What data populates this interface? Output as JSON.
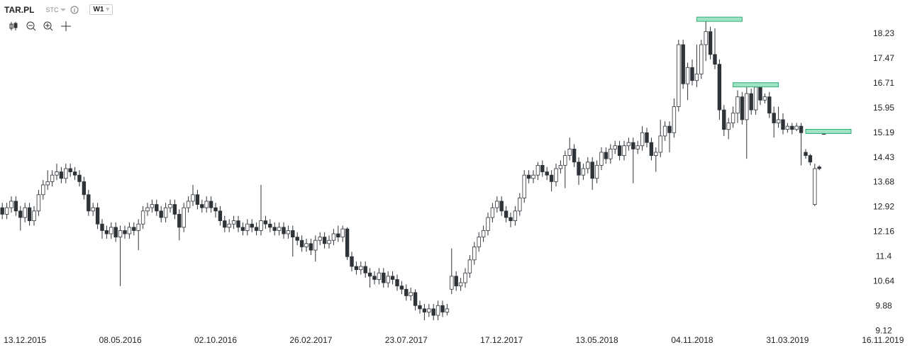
{
  "chart_data": {
    "type": "candlestick",
    "ticker": "TAR.PL",
    "source": "STC",
    "interval": "W1",
    "categories": [
      null,
      null,
      null,
      null,
      null,
      "13.12.2015",
      null,
      null,
      null,
      null,
      null,
      null,
      null,
      null,
      null,
      null,
      null,
      null,
      null,
      null,
      null,
      null,
      null,
      null,
      null,
      null,
      "08.05.2016",
      null,
      null,
      null,
      null,
      null,
      null,
      null,
      null,
      null,
      null,
      null,
      null,
      null,
      null,
      null,
      null,
      null,
      null,
      null,
      null,
      "02.10.2016",
      null,
      null,
      null,
      null,
      null,
      null,
      null,
      null,
      null,
      null,
      null,
      null,
      null,
      null,
      null,
      null,
      null,
      null,
      null,
      null,
      "26.02.2017",
      null,
      null,
      null,
      null,
      null,
      null,
      null,
      null,
      null,
      null,
      null,
      null,
      null,
      null,
      null,
      null,
      null,
      null,
      null,
      null,
      "23.07.2017",
      null,
      null,
      null,
      null,
      null,
      null,
      null,
      null,
      null,
      null,
      null,
      null,
      null,
      null,
      null,
      null,
      null,
      null,
      null,
      null,
      "17.12.2017",
      null,
      null,
      null,
      null,
      null,
      null,
      null,
      null,
      null,
      null,
      null,
      null,
      null,
      null,
      null,
      null,
      null,
      null,
      null,
      null,
      "13.05.2018",
      null,
      null,
      null,
      null,
      null,
      null,
      null,
      null,
      null,
      null,
      null,
      null,
      null,
      null,
      null,
      null,
      null,
      null,
      null,
      null,
      "04.11.2018",
      null,
      null,
      null,
      null,
      null,
      null,
      null,
      null,
      null,
      null,
      null,
      null,
      null,
      null,
      null,
      null,
      null,
      null,
      null,
      null,
      "31.03.2019",
      null,
      null,
      null,
      null,
      null,
      null,
      null,
      null,
      null,
      null,
      null,
      null,
      null,
      null,
      null,
      null,
      null,
      null,
      null,
      null,
      "16.11.2019"
    ],
    "ohlc": [
      [
        12.9,
        13.05,
        12.55,
        12.7
      ],
      [
        12.7,
        13.05,
        12.55,
        12.9
      ],
      [
        12.9,
        13.25,
        12.75,
        13.1
      ],
      [
        13.1,
        13.25,
        12.65,
        12.8
      ],
      [
        12.8,
        12.95,
        12.2,
        12.6
      ],
      [
        12.6,
        13.05,
        12.45,
        12.9
      ],
      [
        12.9,
        13.05,
        12.35,
        12.5
      ],
      [
        12.5,
        12.95,
        12.35,
        12.8
      ],
      [
        12.8,
        13.45,
        12.65,
        13.3
      ],
      [
        13.3,
        13.75,
        13.15,
        13.6
      ],
      [
        13.6,
        14.05,
        13.45,
        13.7
      ],
      [
        13.7,
        14.05,
        13.55,
        13.9
      ],
      [
        13.9,
        14.25,
        13.75,
        14.0
      ],
      [
        14.0,
        14.15,
        13.65,
        13.8
      ],
      [
        13.8,
        14.25,
        13.65,
        14.1
      ],
      [
        14.1,
        14.25,
        13.85,
        14.0
      ],
      [
        14.0,
        14.15,
        13.75,
        13.9
      ],
      [
        13.9,
        14.05,
        13.55,
        13.7
      ],
      [
        13.7,
        13.85,
        13.15,
        13.3
      ],
      [
        13.3,
        13.45,
        12.65,
        12.8
      ],
      [
        12.8,
        13.05,
        12.65,
        12.9
      ],
      [
        12.9,
        13.05,
        12.25,
        12.4
      ],
      [
        12.4,
        12.55,
        11.95,
        12.2
      ],
      [
        12.2,
        12.35,
        11.95,
        12.1
      ],
      [
        12.1,
        12.45,
        11.95,
        12.3
      ],
      [
        12.3,
        12.45,
        11.85,
        12.0
      ],
      [
        12.0,
        12.35,
        10.5,
        12.2
      ],
      [
        12.2,
        12.35,
        11.95,
        12.1
      ],
      [
        12.1,
        12.45,
        11.95,
        12.3
      ],
      [
        12.3,
        12.45,
        12.05,
        12.2
      ],
      [
        12.2,
        12.55,
        11.6,
        12.4
      ],
      [
        12.4,
        12.95,
        12.25,
        12.8
      ],
      [
        12.8,
        13.05,
        12.65,
        12.9
      ],
      [
        12.9,
        13.15,
        12.75,
        13.0
      ],
      [
        13.0,
        13.15,
        12.65,
        12.8
      ],
      [
        12.8,
        12.95,
        12.45,
        12.6
      ],
      [
        12.6,
        13.05,
        12.45,
        12.9
      ],
      [
        12.9,
        13.15,
        12.75,
        13.0
      ],
      [
        13.0,
        13.15,
        12.55,
        12.7
      ],
      [
        12.7,
        12.85,
        11.9,
        12.3
      ],
      [
        12.3,
        13.05,
        12.15,
        12.9
      ],
      [
        12.9,
        13.25,
        12.75,
        13.1
      ],
      [
        13.1,
        13.6,
        12.95,
        13.3
      ],
      [
        13.3,
        13.45,
        12.85,
        13.0
      ],
      [
        13.0,
        13.15,
        12.75,
        12.9
      ],
      [
        12.9,
        13.25,
        12.75,
        13.1
      ],
      [
        13.1,
        13.25,
        12.75,
        12.9
      ],
      [
        12.9,
        13.05,
        12.6,
        12.8
      ],
      [
        12.8,
        12.95,
        12.35,
        12.5
      ],
      [
        12.5,
        12.65,
        12.15,
        12.3
      ],
      [
        12.3,
        12.55,
        12.15,
        12.4
      ],
      [
        12.4,
        12.65,
        12.25,
        12.5
      ],
      [
        12.5,
        12.65,
        12.15,
        12.3
      ],
      [
        12.3,
        12.45,
        12.05,
        12.2
      ],
      [
        12.2,
        12.55,
        12.05,
        12.4
      ],
      [
        12.4,
        12.55,
        12.15,
        12.3
      ],
      [
        12.3,
        12.45,
        12.05,
        12.2
      ],
      [
        12.2,
        13.6,
        12.05,
        12.5
      ],
      [
        12.5,
        12.65,
        12.25,
        12.4
      ],
      [
        12.4,
        12.55,
        12.15,
        12.3
      ],
      [
        12.3,
        12.45,
        12.05,
        12.2
      ],
      [
        12.2,
        12.45,
        12.05,
        12.3
      ],
      [
        12.3,
        12.45,
        11.95,
        12.1
      ],
      [
        12.1,
        12.35,
        11.95,
        12.2
      ],
      [
        12.2,
        12.35,
        11.4,
        12.0
      ],
      [
        12.0,
        12.15,
        11.75,
        11.9
      ],
      [
        11.9,
        12.05,
        11.55,
        11.7
      ],
      [
        11.7,
        11.95,
        11.55,
        11.8
      ],
      [
        11.8,
        11.95,
        11.45,
        11.6
      ],
      [
        11.6,
        12.05,
        11.25,
        11.9
      ],
      [
        11.9,
        12.15,
        11.75,
        12.0
      ],
      [
        12.0,
        12.15,
        11.65,
        11.8
      ],
      [
        11.8,
        12.05,
        11.65,
        11.9
      ],
      [
        11.9,
        12.25,
        11.75,
        12.1
      ],
      [
        12.1,
        12.35,
        11.85,
        12.0
      ],
      [
        12.0,
        12.35,
        11.85,
        12.25
      ],
      [
        12.25,
        12.3,
        11.3,
        11.4
      ],
      [
        11.4,
        11.55,
        10.95,
        11.1
      ],
      [
        11.1,
        11.25,
        10.85,
        11.0
      ],
      [
        11.0,
        11.25,
        10.85,
        11.1
      ],
      [
        11.1,
        11.25,
        10.75,
        10.9
      ],
      [
        10.9,
        11.05,
        10.45,
        10.8
      ],
      [
        10.8,
        10.95,
        10.55,
        10.7
      ],
      [
        10.7,
        11.05,
        10.55,
        10.9
      ],
      [
        10.9,
        11.05,
        10.45,
        10.6
      ],
      [
        10.6,
        10.95,
        10.45,
        10.8
      ],
      [
        10.8,
        10.95,
        10.55,
        10.7
      ],
      [
        10.7,
        10.85,
        10.35,
        10.5
      ],
      [
        10.5,
        10.65,
        10.25,
        10.4
      ],
      [
        10.4,
        10.55,
        10.05,
        10.2
      ],
      [
        10.2,
        10.45,
        10.05,
        10.3
      ],
      [
        10.3,
        10.4,
        9.75,
        9.9
      ],
      [
        9.9,
        10.05,
        9.65,
        9.8
      ],
      [
        9.8,
        9.95,
        9.45,
        9.7
      ],
      [
        9.7,
        9.95,
        9.55,
        9.8
      ],
      [
        9.8,
        9.95,
        9.45,
        9.6
      ],
      [
        9.6,
        10.05,
        9.45,
        9.9
      ],
      [
        9.9,
        10.05,
        9.55,
        9.7
      ],
      [
        9.7,
        9.95,
        9.6,
        9.8
      ],
      [
        10.4,
        11.65,
        10.25,
        10.8
      ],
      [
        10.8,
        10.95,
        10.35,
        10.5
      ],
      [
        10.5,
        10.75,
        10.35,
        10.6
      ],
      [
        10.6,
        11.05,
        10.45,
        10.9
      ],
      [
        10.9,
        11.45,
        10.75,
        11.3
      ],
      [
        11.3,
        11.85,
        11.15,
        11.7
      ],
      [
        11.7,
        12.15,
        11.55,
        12.0
      ],
      [
        12.0,
        12.35,
        11.85,
        12.2
      ],
      [
        12.2,
        12.75,
        12.05,
        12.6
      ],
      [
        12.6,
        13.05,
        12.45,
        12.9
      ],
      [
        12.9,
        13.25,
        12.75,
        13.1
      ],
      [
        13.1,
        13.25,
        12.65,
        12.8
      ],
      [
        12.8,
        12.95,
        12.45,
        12.6
      ],
      [
        12.6,
        12.75,
        12.3,
        12.5
      ],
      [
        12.5,
        12.95,
        12.35,
        12.8
      ],
      [
        12.8,
        13.35,
        12.65,
        13.2
      ],
      [
        13.2,
        14.05,
        13.05,
        13.9
      ],
      [
        13.9,
        14.05,
        13.65,
        13.8
      ],
      [
        13.8,
        14.05,
        13.65,
        13.9
      ],
      [
        13.9,
        14.3,
        13.75,
        14.2
      ],
      [
        14.2,
        14.35,
        13.85,
        14.0
      ],
      [
        14.0,
        14.15,
        13.75,
        13.9
      ],
      [
        13.9,
        14.05,
        13.4,
        13.7
      ],
      [
        13.7,
        14.25,
        13.55,
        14.1
      ],
      [
        14.1,
        14.35,
        13.95,
        14.2
      ],
      [
        14.2,
        14.65,
        13.5,
        14.5
      ],
      [
        14.5,
        15.05,
        14.35,
        14.7
      ],
      [
        14.7,
        14.85,
        14.15,
        14.3
      ],
      [
        14.3,
        14.45,
        13.6,
        13.9
      ],
      [
        13.9,
        14.25,
        13.75,
        14.1
      ],
      [
        14.1,
        14.45,
        13.95,
        14.3
      ],
      [
        14.3,
        14.45,
        13.45,
        13.8
      ],
      [
        13.8,
        14.35,
        13.65,
        14.2
      ],
      [
        14.2,
        14.75,
        14.05,
        14.6
      ],
      [
        14.6,
        14.75,
        14.25,
        14.4
      ],
      [
        14.4,
        14.85,
        14.25,
        14.7
      ],
      [
        14.7,
        14.95,
        14.55,
        14.8
      ],
      [
        14.8,
        14.95,
        14.35,
        14.5
      ],
      [
        14.5,
        14.95,
        14.35,
        14.8
      ],
      [
        14.8,
        15.05,
        14.65,
        14.9
      ],
      [
        14.9,
        15.05,
        13.65,
        14.7
      ],
      [
        14.7,
        14.95,
        14.55,
        14.8
      ],
      [
        14.8,
        15.4,
        14.65,
        15.2
      ],
      [
        15.2,
        15.35,
        14.75,
        14.9
      ],
      [
        14.9,
        15.05,
        14.35,
        14.5
      ],
      [
        14.5,
        14.75,
        14.0,
        14.6
      ],
      [
        14.6,
        15.6,
        14.45,
        15.1
      ],
      [
        15.1,
        15.55,
        14.95,
        15.4
      ],
      [
        15.4,
        15.55,
        14.6,
        15.2
      ],
      [
        15.2,
        16.25,
        15.05,
        16.0
      ],
      [
        16.0,
        18.05,
        15.85,
        17.9
      ],
      [
        17.9,
        18.05,
        16.55,
        16.7
      ],
      [
        16.7,
        17.35,
        16.2,
        17.2
      ],
      [
        17.2,
        17.45,
        16.65,
        16.8
      ],
      [
        16.8,
        17.9,
        16.6,
        17.0
      ],
      [
        17.0,
        18.05,
        16.85,
        17.9
      ],
      [
        17.9,
        18.7,
        17.4,
        18.3
      ],
      [
        18.3,
        18.45,
        17.45,
        17.6
      ],
      [
        17.6,
        18.4,
        17.15,
        17.3
      ],
      [
        17.3,
        17.45,
        15.6,
        15.9
      ],
      [
        15.9,
        16.05,
        15.1,
        15.3
      ],
      [
        15.3,
        15.65,
        15.0,
        15.5
      ],
      [
        15.5,
        16.0,
        15.35,
        15.8
      ],
      [
        15.8,
        16.5,
        15.5,
        16.3
      ],
      [
        16.3,
        16.45,
        15.45,
        15.6
      ],
      [
        15.6,
        16.6,
        14.4,
        16.4
      ],
      [
        16.4,
        16.55,
        15.75,
        15.9
      ],
      [
        15.9,
        16.75,
        15.75,
        16.6
      ],
      [
        16.6,
        16.7,
        16.05,
        16.2
      ],
      [
        16.2,
        16.4,
        16.1,
        16.3
      ],
      [
        16.3,
        16.45,
        15.65,
        15.8
      ],
      [
        15.8,
        16.0,
        15.05,
        15.5
      ],
      [
        15.5,
        16.0,
        15.35,
        15.6
      ],
      [
        15.6,
        15.8,
        15.15,
        15.3
      ],
      [
        15.3,
        15.5,
        15.2,
        15.4
      ],
      [
        15.4,
        15.5,
        15.15,
        15.3
      ],
      [
        15.3,
        15.5,
        15.25,
        15.4
      ],
      [
        15.4,
        15.5,
        14.2,
        15.2
      ],
      [
        14.6,
        14.7,
        14.4,
        14.5
      ],
      [
        14.5,
        14.55,
        14.2,
        14.3
      ],
      [
        13.0,
        14.25,
        12.95,
        14.1
      ],
      [
        14.15,
        14.2,
        14.05,
        14.1
      ],
      [
        15.2,
        15.25,
        15.15,
        15.15
      ],
      null,
      null,
      null,
      null,
      null,
      null,
      null,
      null,
      null,
      null,
      null,
      null,
      null
    ],
    "zones": [
      {
        "value": 18.68,
        "start": 153,
        "end": 163
      },
      {
        "value": 16.67,
        "start": 161,
        "end": 171
      },
      {
        "value": 15.24,
        "start": 177,
        "end": 187
      }
    ],
    "up_color": "#ffffff",
    "down_color": "#2e3338",
    "zone_color": "#9fe3c4",
    "ylim": [
      8.95,
      19.27
    ],
    "yticks": [
      9.12,
      9.88,
      10.64,
      11.4,
      12.16,
      12.92,
      13.68,
      14.43,
      15.19,
      15.95,
      16.71,
      17.47,
      18.23
    ]
  }
}
